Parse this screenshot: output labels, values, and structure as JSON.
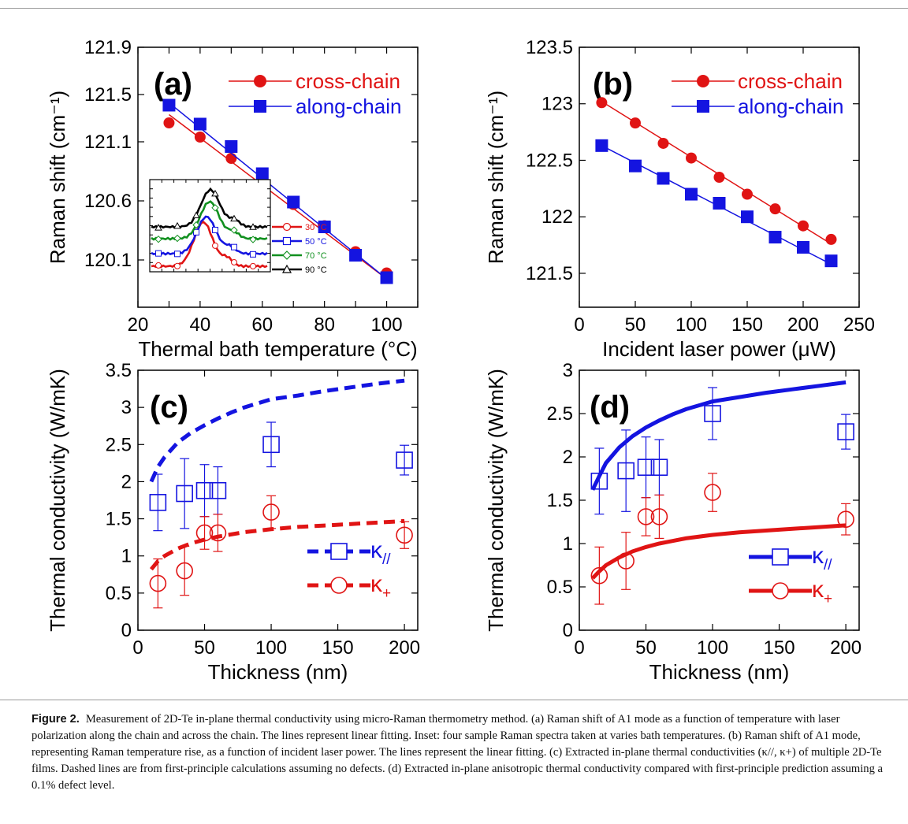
{
  "figure": {
    "caption_label": "Figure 2.",
    "caption_text": "Measurement of 2D-Te in-plane thermal conductivity using micro-Raman thermometry method. (a) Raman shift of A1 mode as a function of temperature with laser polarization along the chain and across the chain. The lines represent linear fitting. Inset: four sample Raman spectra taken at varies bath temperatures. (b) Raman shift of A1 mode, representing Raman temperature rise, as a function of incident laser power. The lines represent the linear fitting. (c) Extracted in-plane thermal conductivities (κ//, κ+) of multiple 2D-Te films. Dashed lines are from first-principle calculations assuming no defects. (d) Extracted in-plane anisotropic thermal conductivity compared with first-principle prediction assuming a 0.1% defect level."
  },
  "chart_data": [
    {
      "panel": "(a)",
      "type": "scatter",
      "xlabel": "Thermal bath temperature (°C)",
      "ylabel": "Raman shift (cm⁻¹)",
      "xlim": [
        20,
        110
      ],
      "ylim": [
        119.7,
        121.9
      ],
      "xticks": [
        20,
        30,
        40,
        50,
        60,
        70,
        80,
        90,
        100,
        110
      ],
      "xticklabels": [
        "20",
        "",
        "40",
        "",
        "60",
        "",
        "80",
        "",
        "100",
        ""
      ],
      "yticks": [
        120.1,
        120.6,
        121.1,
        121.5,
        121.9
      ],
      "yticklabels": [
        "120.1",
        "120.6",
        "121.1",
        "121.5",
        "121.9"
      ],
      "legend_position": "top-right",
      "series": [
        {
          "name": "cross-chain",
          "marker": "filled-circle",
          "color": "#e01414",
          "x": [
            30,
            40,
            50,
            60,
            70,
            80,
            90,
            100
          ],
          "y": [
            121.26,
            121.14,
            120.96,
            120.82,
            120.57,
            120.39,
            120.17,
            119.99
          ],
          "fit": [
            [
              30,
              121.33
            ],
            [
              100,
              119.94
            ]
          ]
        },
        {
          "name": "along-chain",
          "marker": "filled-square",
          "color": "#1414e0",
          "x": [
            30,
            40,
            50,
            60,
            70,
            80,
            90,
            100
          ],
          "y": [
            121.41,
            121.25,
            121.06,
            120.83,
            120.59,
            120.38,
            120.14,
            119.95
          ],
          "fit": [
            [
              30,
              121.43
            ],
            [
              100,
              119.94
            ]
          ]
        }
      ],
      "inset": {
        "type": "line",
        "legend": [
          {
            "name": "30 °C",
            "color": "#e01414",
            "marker": "circle"
          },
          {
            "name": "50 °C",
            "color": "#1414e0",
            "marker": "square"
          },
          {
            "name": "70 °C",
            "color": "#11901f",
            "marker": "diamond"
          },
          {
            "name": "90 °C",
            "color": "#000000",
            "marker": "triangle"
          }
        ]
      }
    },
    {
      "panel": "(b)",
      "type": "scatter",
      "xlabel": "Incident laser power (μW)",
      "ylabel": "Raman shift (cm⁻¹)",
      "xlim": [
        0,
        250
      ],
      "ylim": [
        121.2,
        123.5
      ],
      "xticks": [
        0,
        50,
        100,
        150,
        200,
        250
      ],
      "xticklabels": [
        "0",
        "50",
        "100",
        "150",
        "200",
        "250"
      ],
      "yticks": [
        121.5,
        122,
        122.5,
        123,
        123.5
      ],
      "yticklabels": [
        "121.5",
        "122",
        "122.5",
        "123",
        "123.5"
      ],
      "legend_position": "top-right",
      "series": [
        {
          "name": "cross-chain",
          "marker": "filled-circle",
          "color": "#e01414",
          "x": [
            20,
            50,
            75,
            100,
            125,
            150,
            175,
            200,
            225
          ],
          "y": [
            123.01,
            122.83,
            122.65,
            122.52,
            122.35,
            122.2,
            122.07,
            121.92,
            121.8
          ],
          "fit": [
            [
              20,
              123.02
            ],
            [
              225,
              121.76
            ]
          ]
        },
        {
          "name": "along-chain",
          "marker": "filled-square",
          "color": "#1414e0",
          "x": [
            20,
            50,
            75,
            100,
            125,
            150,
            175,
            200,
            225
          ],
          "y": [
            122.63,
            122.45,
            122.34,
            122.2,
            122.12,
            122.0,
            121.82,
            121.73,
            121.61
          ],
          "fit": [
            [
              20,
              122.63
            ],
            [
              225,
              121.58
            ]
          ]
        }
      ]
    },
    {
      "panel": "(c)",
      "type": "scatter",
      "xlabel": "Thickness (nm)",
      "ylabel": "Thermal conductivity (W/mK)",
      "xlim": [
        0,
        210
      ],
      "ylim": [
        0,
        3.5
      ],
      "xticks": [
        0,
        50,
        100,
        150,
        200
      ],
      "xticklabels": [
        "0",
        "50",
        "100",
        "150",
        "200"
      ],
      "yticks": [
        0,
        0.5,
        1,
        1.5,
        2,
        2.5,
        3,
        3.5
      ],
      "yticklabels": [
        "0",
        "0.5",
        "1",
        "1.5",
        "2",
        "2.5",
        "3",
        "3.5"
      ],
      "legend_position": "bottom-right",
      "series": [
        {
          "name": "κ//",
          "marker": "open-square",
          "color": "#1414e0",
          "line": "dashed",
          "x": [
            15,
            35,
            50,
            60,
            100,
            200
          ],
          "y": [
            1.72,
            1.84,
            1.88,
            1.88,
            2.5,
            2.29
          ],
          "err": [
            0.38,
            0.47,
            0.35,
            0.32,
            0.3,
            0.2
          ],
          "curve": [
            [
              10,
              2.0
            ],
            [
              15,
              2.2
            ],
            [
              20,
              2.33
            ],
            [
              30,
              2.53
            ],
            [
              40,
              2.66
            ],
            [
              50,
              2.76
            ],
            [
              60,
              2.85
            ],
            [
              70,
              2.93
            ],
            [
              80,
              3.0
            ],
            [
              100,
              3.11
            ],
            [
              120,
              3.16
            ],
            [
              140,
              3.22
            ],
            [
              160,
              3.27
            ],
            [
              180,
              3.32
            ],
            [
              200,
              3.36
            ]
          ]
        },
        {
          "name": "κ+",
          "marker": "open-circle",
          "color": "#e01414",
          "line": "dashed",
          "x": [
            15,
            35,
            50,
            60,
            100,
            200
          ],
          "y": [
            0.63,
            0.8,
            1.31,
            1.31,
            1.59,
            1.28
          ],
          "err": [
            0.33,
            0.33,
            0.22,
            0.25,
            0.22,
            0.18
          ],
          "curve": [
            [
              10,
              0.82
            ],
            [
              15,
              0.93
            ],
            [
              20,
              1.0
            ],
            [
              30,
              1.1
            ],
            [
              40,
              1.17
            ],
            [
              50,
              1.22
            ],
            [
              60,
              1.26
            ],
            [
              70,
              1.29
            ],
            [
              80,
              1.32
            ],
            [
              100,
              1.36
            ],
            [
              120,
              1.39
            ],
            [
              140,
              1.41
            ],
            [
              160,
              1.43
            ],
            [
              180,
              1.45
            ],
            [
              200,
              1.47
            ]
          ]
        }
      ]
    },
    {
      "panel": "(d)",
      "type": "scatter",
      "xlabel": "Thickness (nm)",
      "ylabel": "Thermal conductivity (W/mK)",
      "xlim": [
        0,
        210
      ],
      "ylim": [
        0,
        3
      ],
      "xticks": [
        0,
        50,
        100,
        150,
        200
      ],
      "xticklabels": [
        "0",
        "50",
        "100",
        "150",
        "200"
      ],
      "yticks": [
        0,
        0.5,
        1,
        1.5,
        2,
        2.5,
        3
      ],
      "yticklabels": [
        "0",
        "0.5",
        "1",
        "1.5",
        "2",
        "2.5",
        "3"
      ],
      "legend_position": "bottom-right",
      "series": [
        {
          "name": "κ//",
          "marker": "open-square",
          "color": "#1414e0",
          "line": "solid",
          "x": [
            15,
            35,
            50,
            60,
            100,
            200
          ],
          "y": [
            1.72,
            1.84,
            1.88,
            1.88,
            2.5,
            2.29
          ],
          "err": [
            0.38,
            0.47,
            0.35,
            0.32,
            0.3,
            0.2
          ],
          "curve": [
            [
              10,
              1.62
            ],
            [
              15,
              1.78
            ],
            [
              20,
              1.93
            ],
            [
              30,
              2.11
            ],
            [
              40,
              2.24
            ],
            [
              50,
              2.34
            ],
            [
              60,
              2.42
            ],
            [
              70,
              2.49
            ],
            [
              80,
              2.55
            ],
            [
              100,
              2.64
            ],
            [
              120,
              2.69
            ],
            [
              140,
              2.74
            ],
            [
              160,
              2.78
            ],
            [
              180,
              2.82
            ],
            [
              200,
              2.86
            ]
          ]
        },
        {
          "name": "κ+",
          "marker": "open-circle",
          "color": "#e01414",
          "line": "solid",
          "x": [
            15,
            35,
            50,
            60,
            100,
            200
          ],
          "y": [
            0.63,
            0.8,
            1.31,
            1.31,
            1.59,
            1.28
          ],
          "err": [
            0.33,
            0.33,
            0.22,
            0.25,
            0.22,
            0.18
          ],
          "curve": [
            [
              10,
              0.6
            ],
            [
              15,
              0.68
            ],
            [
              20,
              0.75
            ],
            [
              30,
              0.84
            ],
            [
              40,
              0.91
            ],
            [
              50,
              0.96
            ],
            [
              60,
              1.0
            ],
            [
              70,
              1.03
            ],
            [
              80,
              1.06
            ],
            [
              100,
              1.1
            ],
            [
              120,
              1.13
            ],
            [
              140,
              1.15
            ],
            [
              160,
              1.17
            ],
            [
              180,
              1.19
            ],
            [
              200,
              1.21
            ]
          ]
        }
      ]
    }
  ]
}
